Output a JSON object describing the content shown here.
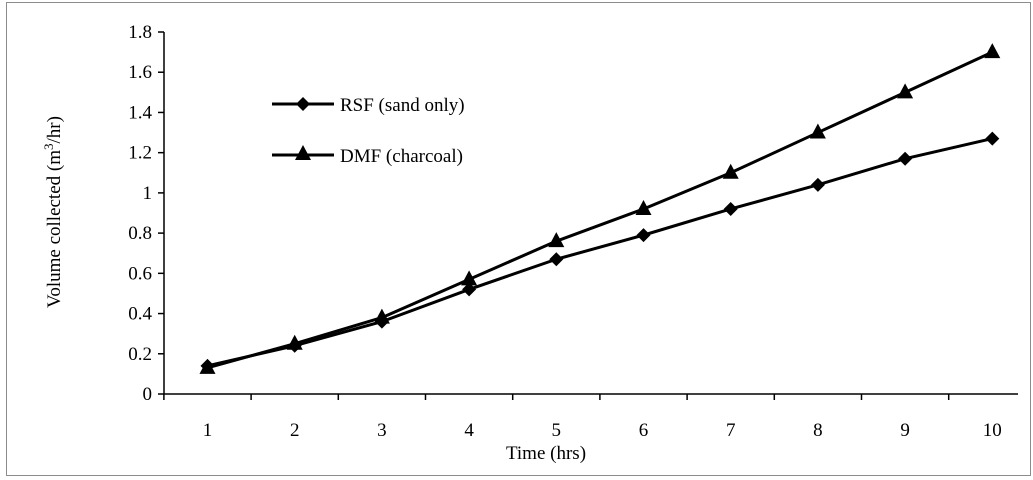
{
  "chart_data": {
    "type": "line",
    "title": "",
    "xlabel": "Time (hrs)",
    "ylabel_main": "Volume collected (m",
    "ylabel_sup": "3",
    "ylabel_tail": "/hr)",
    "categories": [
      "1",
      "2",
      "3",
      "4",
      "5",
      "6",
      "7",
      "8",
      "9",
      "10"
    ],
    "x": [
      1,
      2,
      3,
      4,
      5,
      6,
      7,
      8,
      9,
      10
    ],
    "ylim": [
      0,
      1.8
    ],
    "yticks": [
      "0",
      "0.2",
      "0.4",
      "0.6",
      "0.8",
      "1",
      "1.2",
      "1.4",
      "1.6",
      "1.8"
    ],
    "grid": false,
    "legend_position": "top-left",
    "series": [
      {
        "name": "RSF (sand only)",
        "marker": "diamond",
        "color": "#000000",
        "values": [
          0.14,
          0.24,
          0.36,
          0.52,
          0.67,
          0.79,
          0.92,
          1.04,
          1.17,
          1.27
        ]
      },
      {
        "name": "DMF (charcoal)",
        "marker": "triangle",
        "color": "#000000",
        "values": [
          0.13,
          0.25,
          0.38,
          0.57,
          0.76,
          0.92,
          1.1,
          1.3,
          1.5,
          1.7
        ]
      }
    ]
  }
}
